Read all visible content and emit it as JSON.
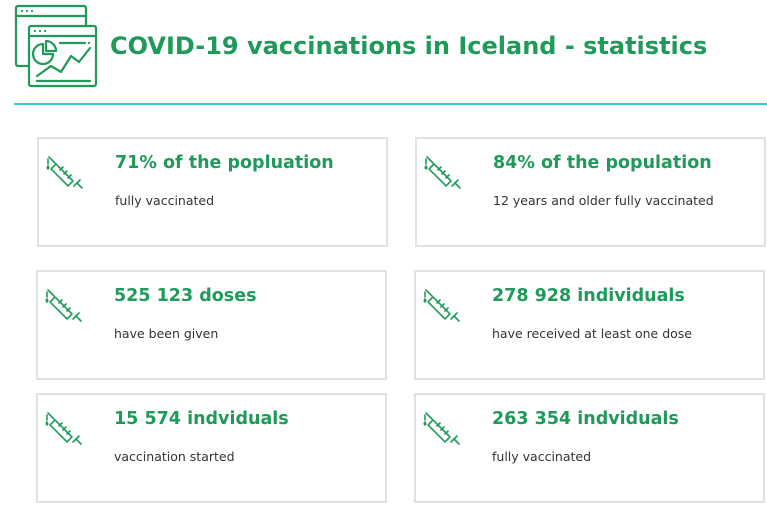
{
  "header": {
    "title": "COVID-19 vaccinations in Iceland - statistics",
    "icon": "statistics-dashboard-icon"
  },
  "colors": {
    "accent": "#1f9a5a",
    "rule": "#3ac6c2",
    "card_border": "#e1e1e1",
    "body_text": "#333333"
  },
  "cards": [
    {
      "value": "71% of the popluation",
      "label": "fully vaccinated",
      "icon": "syringe-icon"
    },
    {
      "value": "84% of the population",
      "label": "12 years and older fully vaccinated",
      "icon": "syringe-icon"
    },
    {
      "value": "525 123 doses",
      "label": "have been given",
      "icon": "syringe-icon"
    },
    {
      "value": "278 928 individuals",
      "label": "have received at least one dose",
      "icon": "syringe-icon"
    },
    {
      "value": "15 574 indviduals",
      "label": "vaccination started",
      "icon": "syringe-icon"
    },
    {
      "value": "263 354 indviduals",
      "label": "fully vaccinated",
      "icon": "syringe-icon"
    }
  ]
}
